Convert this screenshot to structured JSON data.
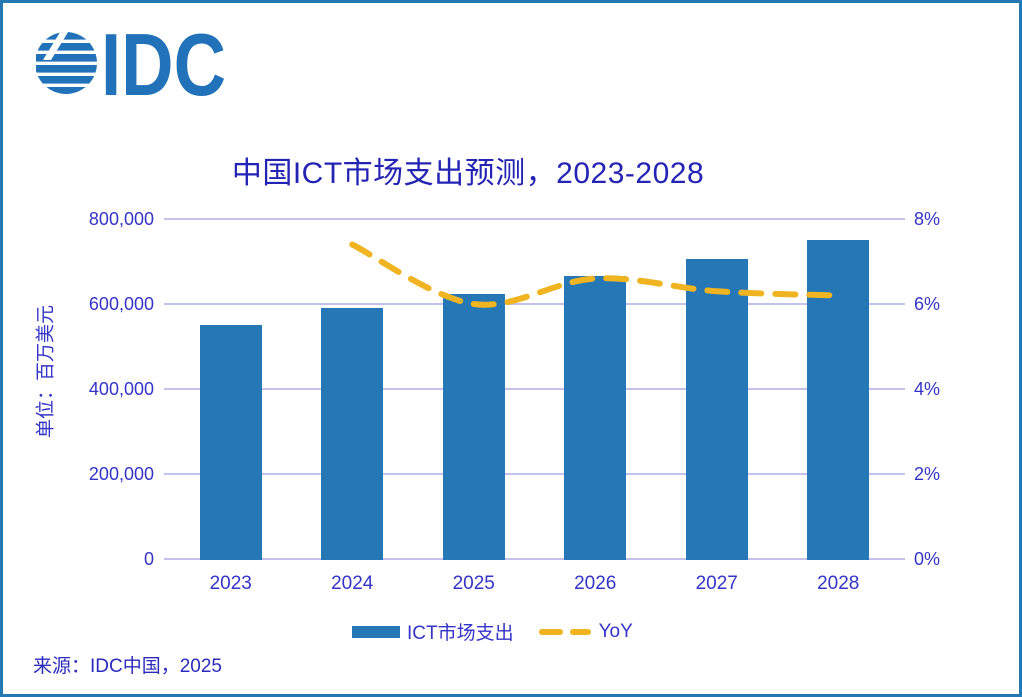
{
  "logo": {
    "text": "IDC",
    "color": "#2272B9"
  },
  "source": "来源：IDC中国，2025",
  "colors": {
    "frame_border": "#2478B4",
    "bar": "#2577B6",
    "yoy_line": "#EFB41F",
    "gridline": "#C2C2EC",
    "title_text": "#2424B4",
    "axis_text": "#3434C8",
    "source_text": "#2B2BBE"
  },
  "chart_data": {
    "type": "bar",
    "title": "中国ICT市场支出预测，2023-2028",
    "categories": [
      "2023",
      "2024",
      "2025",
      "2026",
      "2027",
      "2028"
    ],
    "series": [
      {
        "name": "ICT市场支出",
        "type": "bar",
        "axis": "left",
        "values": [
          550000,
          590000,
          624000,
          666000,
          707000,
          751000
        ]
      },
      {
        "name": "YoY",
        "type": "line",
        "axis": "right",
        "values": [
          null,
          7.4,
          6.0,
          6.6,
          6.3,
          6.2
        ]
      }
    ],
    "left_axis": {
      "label": "单位：百万美元",
      "min": 0,
      "max": 800000,
      "ticks": [
        "0",
        "200,000",
        "400,000",
        "600,000",
        "800,000"
      ]
    },
    "right_axis": {
      "min": 0,
      "max": 8,
      "ticks": [
        "0%",
        "2%",
        "4%",
        "6%",
        "8%"
      ]
    },
    "legend": [
      {
        "label": "ICT市场支出",
        "type": "bar"
      },
      {
        "label": "YoY",
        "type": "line"
      }
    ],
    "grid": "horizontal",
    "legend_position": "bottom-center"
  }
}
